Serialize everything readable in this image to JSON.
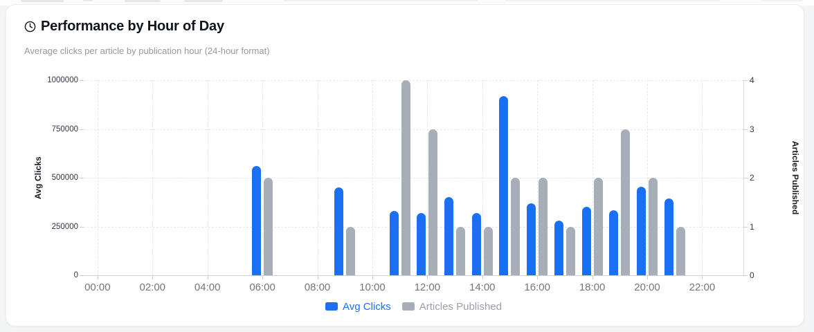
{
  "header": {
    "icon": "clock-icon",
    "title": "Performance by Hour of Day",
    "subtitle": "Average clicks per article by publication hour (24-hour format)"
  },
  "legend": {
    "items": [
      {
        "label": "Avg Clicks",
        "swatch_color": "#1a6ff2",
        "label_color": "#1a6ff2"
      },
      {
        "label": "Articles Published",
        "swatch_color": "#a8aeb7",
        "label_color": "#9aa1ab"
      }
    ]
  },
  "chart_data": {
    "type": "bar",
    "title": "Performance by Hour of Day",
    "categories": [
      "00:00",
      "01:00",
      "02:00",
      "03:00",
      "04:00",
      "05:00",
      "06:00",
      "07:00",
      "08:00",
      "09:00",
      "10:00",
      "11:00",
      "12:00",
      "13:00",
      "14:00",
      "15:00",
      "16:00",
      "17:00",
      "18:00",
      "19:00",
      "20:00",
      "21:00",
      "22:00",
      "23:00"
    ],
    "x_tick_labels": [
      "00:00",
      "02:00",
      "04:00",
      "06:00",
      "08:00",
      "10:00",
      "12:00",
      "14:00",
      "16:00",
      "18:00",
      "20:00",
      "22:00"
    ],
    "series": [
      {
        "name": "Avg Clicks",
        "axis": "left",
        "color": "#1a6ff2",
        "values": [
          null,
          null,
          null,
          null,
          null,
          null,
          560000,
          null,
          null,
          450000,
          null,
          330000,
          320000,
          400000,
          320000,
          920000,
          370000,
          280000,
          350000,
          335000,
          455000,
          395000,
          null,
          null
        ]
      },
      {
        "name": "Articles Published",
        "axis": "right",
        "color": "#a8aeb7",
        "values": [
          null,
          null,
          null,
          null,
          null,
          null,
          2,
          null,
          null,
          1,
          null,
          4,
          3,
          1,
          1,
          2,
          2,
          1,
          2,
          3,
          2,
          1,
          null,
          null
        ]
      }
    ],
    "ylabel_left": "Avg Clicks",
    "ylabel_right": "Articles Published",
    "yleft_ticks": [
      0,
      250000,
      500000,
      750000,
      1000000
    ],
    "yleft_tick_labels": [
      "0",
      "250000",
      "500000",
      "750000",
      "1000000"
    ],
    "yleft_max": 1000000,
    "yright_ticks": [
      0,
      1,
      2,
      3,
      4
    ],
    "yright_tick_labels": [
      "0",
      "1",
      "2",
      "3",
      "4"
    ],
    "yright_max": 4,
    "grid": "dashed",
    "legend_position": "bottom"
  }
}
